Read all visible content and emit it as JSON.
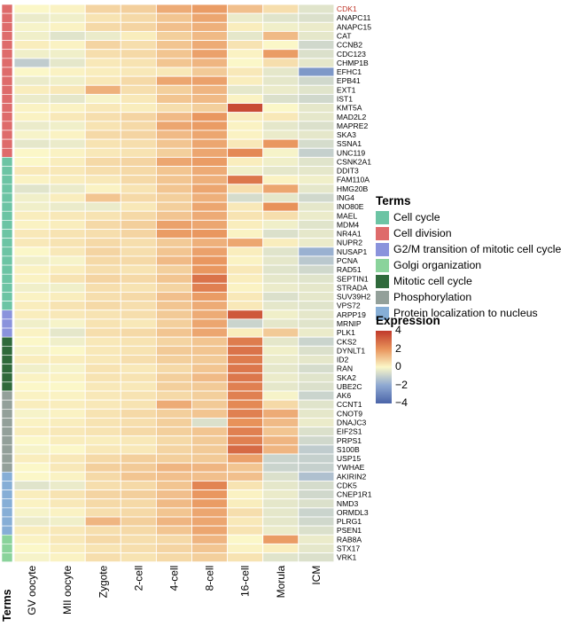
{
  "chart_data": {
    "type": "heatmap",
    "columns": [
      "GV oocyte",
      "MII oocyte",
      "Zygote",
      "2-cell",
      "4-cell",
      "8-cell",
      "16-cell",
      "Morula",
      "ICM"
    ],
    "rows": [
      {
        "gene": "CDK1",
        "term": "Cell division",
        "values": [
          0.0,
          0.1,
          0.7,
          0.8,
          1.5,
          1.8,
          1.1,
          0.5,
          -0.5
        ]
      },
      {
        "gene": "ANAPC11",
        "term": "Cell division",
        "values": [
          -0.3,
          -0.2,
          0.4,
          0.6,
          1.0,
          1.6,
          -0.3,
          -0.5,
          -0.6
        ]
      },
      {
        "gene": "ANAPC15",
        "term": "Cell division",
        "values": [
          -0.1,
          0.1,
          0.6,
          0.7,
          1.1,
          1.4,
          0.2,
          -0.2,
          -0.3
        ]
      },
      {
        "gene": "CAT",
        "term": "Cell division",
        "values": [
          -0.2,
          -0.5,
          -0.3,
          0.2,
          0.8,
          1.2,
          -0.4,
          1.2,
          -0.4
        ]
      },
      {
        "gene": "CCNB2",
        "term": "Cell division",
        "values": [
          0.2,
          0.1,
          0.7,
          0.5,
          1.0,
          1.5,
          0.4,
          0.0,
          -0.8
        ]
      },
      {
        "gene": "CDC123",
        "term": "Cell division",
        "values": [
          -0.2,
          -0.2,
          0.5,
          0.6,
          1.0,
          1.7,
          0.1,
          1.8,
          -0.6
        ]
      },
      {
        "gene": "CHMP1B",
        "term": "Cell division",
        "values": [
          -1.1,
          -0.4,
          0.3,
          0.4,
          1.0,
          1.3,
          0.0,
          0.5,
          -0.4
        ]
      },
      {
        "gene": "EFHC1",
        "term": "Cell division",
        "values": [
          0.0,
          0.1,
          0.2,
          0.3,
          0.3,
          0.9,
          0.3,
          -0.4,
          -2.5
        ]
      },
      {
        "gene": "EPB41",
        "term": "Cell division",
        "values": [
          -0.3,
          -0.2,
          0.3,
          0.6,
          1.6,
          1.7,
          0.2,
          -0.4,
          -0.8
        ]
      },
      {
        "gene": "EXT1",
        "term": "Cell division",
        "values": [
          0.2,
          0.3,
          1.4,
          0.5,
          0.8,
          1.3,
          -0.4,
          -0.3,
          -0.5
        ]
      },
      {
        "gene": "IST1",
        "term": "Cell division",
        "values": [
          -0.3,
          -0.4,
          -0.1,
          0.3,
          1.0,
          1.2,
          0.1,
          -0.6,
          -0.8
        ]
      },
      {
        "gene": "KMT5A",
        "term": "Cell division",
        "values": [
          0.1,
          0.1,
          0.3,
          0.2,
          0.5,
          0.8,
          3.6,
          0.0,
          -0.4
        ]
      },
      {
        "gene": "MAD2L2",
        "term": "Cell division",
        "values": [
          0.1,
          0.3,
          0.5,
          0.7,
          1.2,
          1.9,
          0.2,
          0.3,
          -0.4
        ]
      },
      {
        "gene": "MAPRE2",
        "term": "Cell division",
        "values": [
          -0.3,
          -0.2,
          0.4,
          0.6,
          1.6,
          1.8,
          0.1,
          -0.4,
          -0.6
        ]
      },
      {
        "gene": "SKA3",
        "term": "Cell division",
        "values": [
          -0.1,
          0.1,
          0.6,
          0.7,
          1.2,
          1.6,
          0.1,
          -0.3,
          -0.4
        ]
      },
      {
        "gene": "SSNA1",
        "term": "Cell division",
        "values": [
          -0.4,
          -0.3,
          0.4,
          0.5,
          1.0,
          1.6,
          0.3,
          1.9,
          -0.7
        ]
      },
      {
        "gene": "UNC119",
        "term": "Cell division",
        "values": [
          0.0,
          0.1,
          0.3,
          0.4,
          0.8,
          1.6,
          2.2,
          -0.1,
          -1.0
        ]
      },
      {
        "gene": "CSNK2A1",
        "term": "Cell cycle",
        "values": [
          0.0,
          0.2,
          0.6,
          0.7,
          1.6,
          1.8,
          0.2,
          -0.2,
          -0.5
        ]
      },
      {
        "gene": "DDIT3",
        "term": "Cell cycle",
        "values": [
          0.3,
          0.3,
          0.5,
          0.6,
          1.0,
          1.5,
          -0.2,
          -0.4,
          -0.4
        ]
      },
      {
        "gene": "FAM110A",
        "term": "Cell cycle",
        "values": [
          0.1,
          0.2,
          0.3,
          0.6,
          1.0,
          1.4,
          2.6,
          0.1,
          -0.2
        ]
      },
      {
        "gene": "HMG20B",
        "term": "Cell cycle",
        "values": [
          -0.5,
          -0.3,
          0.1,
          0.4,
          1.0,
          1.6,
          0.5,
          1.6,
          -0.4
        ]
      },
      {
        "gene": "ING4",
        "term": "Cell cycle",
        "values": [
          -0.2,
          0.2,
          1.0,
          0.6,
          0.8,
          1.4,
          -0.7,
          -0.4,
          -0.8
        ]
      },
      {
        "gene": "INO80E",
        "term": "Cell cycle",
        "values": [
          -0.2,
          -0.3,
          -0.3,
          0.3,
          0.8,
          1.6,
          0.3,
          2.0,
          -0.4
        ]
      },
      {
        "gene": "MAEL",
        "term": "Cell cycle",
        "values": [
          0.2,
          0.3,
          0.4,
          0.6,
          1.0,
          1.5,
          0.4,
          0.5,
          -0.3
        ]
      },
      {
        "gene": "MDM4",
        "term": "Cell cycle",
        "values": [
          0.1,
          0.2,
          0.6,
          0.8,
          1.7,
          1.6,
          0.2,
          -0.2,
          -0.5
        ]
      },
      {
        "gene": "NR4A1",
        "term": "Cell cycle",
        "values": [
          0.3,
          0.4,
          0.5,
          0.7,
          1.8,
          1.9,
          0.1,
          -0.6,
          -0.4
        ]
      },
      {
        "gene": "NUPR2",
        "term": "Cell cycle",
        "values": [
          0.3,
          0.4,
          0.6,
          0.5,
          0.9,
          1.4,
          1.6,
          0.2,
          -0.3
        ]
      },
      {
        "gene": "NUSAP1",
        "term": "Cell cycle",
        "values": [
          0.0,
          0.3,
          0.7,
          0.5,
          1.0,
          1.7,
          0.2,
          -0.5,
          -1.8
        ]
      },
      {
        "gene": "PCNA",
        "term": "Cell cycle",
        "values": [
          -0.2,
          -0.1,
          0.6,
          0.6,
          1.2,
          1.9,
          0.1,
          -0.4,
          -1.2
        ]
      },
      {
        "gene": "RAD51",
        "term": "Cell cycle",
        "values": [
          0.1,
          0.2,
          0.5,
          0.4,
          0.8,
          1.9,
          0.3,
          -0.5,
          -0.8
        ]
      },
      {
        "gene": "SEPTIN1",
        "term": "Cell cycle",
        "values": [
          0.1,
          0.4,
          0.7,
          0.6,
          1.0,
          2.7,
          0.2,
          -0.4,
          -0.5
        ]
      },
      {
        "gene": "STRADA",
        "term": "Cell cycle",
        "values": [
          -0.2,
          -0.2,
          0.5,
          0.4,
          0.7,
          2.4,
          0.1,
          -0.3,
          -0.4
        ]
      },
      {
        "gene": "SUV39H2",
        "term": "Cell cycle",
        "values": [
          0.1,
          0.2,
          0.5,
          0.6,
          1.1,
          1.8,
          0.3,
          -0.6,
          -0.4
        ]
      },
      {
        "gene": "VPS72",
        "term": "Cell cycle",
        "values": [
          0.2,
          0.4,
          0.6,
          0.5,
          1.0,
          1.5,
          0.3,
          -0.4,
          -0.5
        ]
      },
      {
        "gene": "ARPP19",
        "term": "G2/M transition of mitotic cell cycle",
        "values": [
          0.2,
          0.3,
          0.4,
          0.5,
          0.9,
          1.5,
          3.3,
          -0.2,
          -0.4
        ]
      },
      {
        "gene": "MRNIP",
        "term": "G2/M transition of mitotic cell cycle",
        "values": [
          -0.2,
          -0.1,
          0.4,
          0.3,
          0.8,
          1.6,
          -0.9,
          -0.4,
          -0.5
        ]
      },
      {
        "gene": "PLK1",
        "term": "G2/M transition of mitotic cell cycle",
        "values": [
          0.1,
          -0.4,
          0.5,
          0.6,
          1.0,
          1.6,
          0.2,
          0.9,
          -0.3
        ]
      },
      {
        "gene": "CKS2",
        "term": "Mitotic cell cycle",
        "values": [
          0.0,
          -0.2,
          0.3,
          0.4,
          0.7,
          1.0,
          2.5,
          -0.4,
          -0.9
        ]
      },
      {
        "gene": "DYNLT1",
        "term": "Mitotic cell cycle",
        "values": [
          -0.1,
          0.0,
          0.3,
          0.4,
          0.9,
          1.0,
          2.7,
          -0.2,
          -0.6
        ]
      },
      {
        "gene": "ID2",
        "term": "Mitotic cell cycle",
        "values": [
          0.2,
          0.2,
          0.3,
          0.5,
          0.8,
          0.9,
          2.5,
          -0.3,
          -0.4
        ]
      },
      {
        "gene": "RAN",
        "term": "Mitotic cell cycle",
        "values": [
          -0.2,
          -0.1,
          0.4,
          0.3,
          0.6,
          1.0,
          2.6,
          -0.4,
          -0.7
        ]
      },
      {
        "gene": "SKA2",
        "term": "Mitotic cell cycle",
        "values": [
          0.1,
          0.1,
          0.4,
          0.4,
          0.8,
          1.2,
          2.6,
          -0.3,
          -0.5
        ]
      },
      {
        "gene": "UBE2C",
        "term": "Mitotic cell cycle",
        "values": [
          0.0,
          0.0,
          0.3,
          0.3,
          0.8,
          0.9,
          2.4,
          -0.4,
          -0.6
        ]
      },
      {
        "gene": "AK6",
        "term": "Phosphorylation",
        "values": [
          0.1,
          0.1,
          0.3,
          0.4,
          0.6,
          0.8,
          2.4,
          -0.1,
          -0.9
        ]
      },
      {
        "gene": "CCNT1",
        "term": "Phosphorylation",
        "values": [
          0.2,
          0.2,
          0.3,
          0.4,
          1.5,
          0.9,
          2.2,
          0.6,
          -0.5
        ]
      },
      {
        "gene": "CNOT9",
        "term": "Phosphorylation",
        "values": [
          -0.1,
          0.1,
          0.4,
          0.6,
          0.8,
          1.0,
          2.4,
          1.5,
          -0.4
        ]
      },
      {
        "gene": "DNAJC3",
        "term": "Phosphorylation",
        "values": [
          0.1,
          0.2,
          0.4,
          0.5,
          0.8,
          -0.6,
          2.0,
          1.2,
          -0.3
        ]
      },
      {
        "gene": "EIF2S1",
        "term": "Phosphorylation",
        "values": [
          0.2,
          0.3,
          0.4,
          0.6,
          0.8,
          1.0,
          2.4,
          1.0,
          -0.6
        ]
      },
      {
        "gene": "PRPS1",
        "term": "Phosphorylation",
        "values": [
          0.0,
          0.2,
          0.2,
          0.3,
          0.6,
          0.9,
          2.4,
          1.3,
          -0.8
        ]
      },
      {
        "gene": "S100B",
        "term": "Phosphorylation",
        "values": [
          -0.1,
          0.0,
          0.3,
          0.3,
          0.7,
          0.9,
          2.9,
          1.3,
          -1.1
        ]
      },
      {
        "gene": "USP15",
        "term": "Phosphorylation",
        "values": [
          0.2,
          0.3,
          0.6,
          0.8,
          0.8,
          0.9,
          1.7,
          -0.9,
          -1.0
        ]
      },
      {
        "gene": "YWHAE",
        "term": "Phosphorylation",
        "values": [
          0.0,
          0.3,
          0.8,
          0.9,
          1.3,
          1.3,
          1.0,
          -0.9,
          -1.0
        ]
      },
      {
        "gene": "AKIRIN2",
        "term": "Protein localization to nucleus",
        "values": [
          0.0,
          0.1,
          0.6,
          1.0,
          1.1,
          1.1,
          1.1,
          -0.6,
          -1.4
        ]
      },
      {
        "gene": "CDK5",
        "term": "Protein localization to nucleus",
        "values": [
          -0.5,
          -0.3,
          0.5,
          0.6,
          1.0,
          2.3,
          0.4,
          -0.4,
          -0.7
        ]
      },
      {
        "gene": "CNEP1R1",
        "term": "Protein localization to nucleus",
        "values": [
          0.2,
          0.4,
          0.7,
          0.8,
          1.1,
          1.9,
          0.1,
          -0.3,
          -0.8
        ]
      },
      {
        "gene": "NMD3",
        "term": "Protein localization to nucleus",
        "values": [
          0.1,
          0.3,
          0.6,
          0.6,
          1.2,
          1.8,
          0.2,
          -0.4,
          -0.6
        ]
      },
      {
        "gene": "ORMDL3",
        "term": "Protein localization to nucleus",
        "values": [
          -0.1,
          0.1,
          0.5,
          0.6,
          1.0,
          1.6,
          0.5,
          -0.4,
          -0.9
        ]
      },
      {
        "gene": "PLRG1",
        "term": "Protein localization to nucleus",
        "values": [
          -0.3,
          -0.2,
          1.3,
          0.8,
          1.3,
          1.6,
          0.3,
          -0.4,
          -0.8
        ]
      },
      {
        "gene": "PSEN1",
        "term": "Protein localization to nucleus",
        "values": [
          0.2,
          0.3,
          0.5,
          0.6,
          1.0,
          1.6,
          0.4,
          -0.3,
          -0.6
        ]
      },
      {
        "gene": "RAB8A",
        "term": "Golgi organization",
        "values": [
          0.1,
          0.3,
          0.6,
          0.5,
          0.6,
          1.3,
          0.0,
          1.8,
          -0.3
        ]
      },
      {
        "gene": "STX17",
        "term": "Golgi organization",
        "values": [
          0.0,
          0.2,
          0.4,
          0.5,
          0.7,
          1.0,
          0.1,
          0.2,
          -0.4
        ]
      },
      {
        "gene": "VRK1",
        "term": "Golgi organization",
        "values": [
          -0.1,
          0.1,
          0.5,
          0.4,
          0.6,
          0.8,
          0.4,
          -0.5,
          -0.6
        ]
      }
    ],
    "highlighted_gene": "CDK1",
    "row_axis_label": "Terms",
    "legend_terms": {
      "title": "Terms",
      "items": [
        {
          "label": "Cell cycle",
          "color": "#6cc4a4"
        },
        {
          "label": "Cell division",
          "color": "#de6b6b"
        },
        {
          "label": "G2/M transition of mitotic cell cycle",
          "color": "#8a93dc"
        },
        {
          "label": "Golgi organization",
          "color": "#8ad39b"
        },
        {
          "label": "Mitotic cell cycle",
          "color": "#2f6a3b"
        },
        {
          "label": "Phosphorylation",
          "color": "#93a09a"
        },
        {
          "label": "Protein localization to nucleus",
          "color": "#86aed6"
        }
      ]
    },
    "legend_expression": {
      "title": "Expression",
      "ticks": [
        "4",
        "2",
        "0",
        "−2",
        "−4"
      ],
      "range": [
        -4,
        4
      ],
      "colors": {
        "low": "#4a64a8",
        "mid_low": "#8fa9d2",
        "mid": "#fbf7c8",
        "mid_high": "#e8925a",
        "high": "#c0392b"
      }
    },
    "highlight_color": "#c0392b"
  }
}
